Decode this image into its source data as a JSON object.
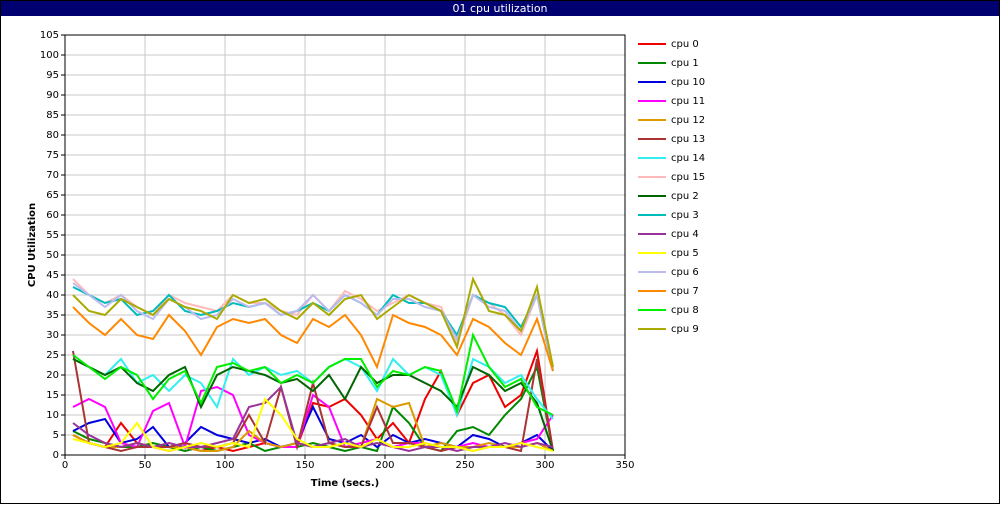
{
  "window_title": "01 cpu utilization",
  "chart_data": {
    "type": "line",
    "ylabel": "CPU Utilization",
    "xlabel": "Time (secs.)",
    "grid": true,
    "xlim": [
      0,
      350
    ],
    "xticks": [
      0,
      50,
      100,
      150,
      200,
      250,
      300,
      350
    ],
    "ylim": [
      0,
      105
    ],
    "yticks": [
      0,
      5,
      10,
      15,
      20,
      25,
      30,
      35,
      40,
      45,
      50,
      55,
      60,
      65,
      70,
      75,
      80,
      85,
      90,
      95,
      100,
      105
    ],
    "x": [
      5,
      15,
      25,
      35,
      45,
      55,
      65,
      75,
      85,
      95,
      105,
      115,
      125,
      135,
      145,
      155,
      165,
      175,
      185,
      195,
      205,
      215,
      225,
      235,
      245,
      255,
      265,
      275,
      285,
      295,
      305
    ],
    "series": [
      {
        "name": "cpu 0",
        "color": "#ee0000",
        "values": [
          5,
          3,
          2,
          8,
          3,
          2,
          1,
          2,
          1,
          2,
          1,
          2,
          3,
          2,
          2,
          13,
          12,
          14,
          10,
          4,
          8,
          3,
          14,
          21,
          10,
          18,
          20,
          12,
          15,
          26,
          1
        ]
      },
      {
        "name": "cpu 1",
        "color": "#008800",
        "values": [
          6,
          4,
          3,
          2,
          2,
          3,
          2,
          1,
          2,
          1,
          2,
          3,
          1,
          2,
          2,
          3,
          2,
          1,
          2,
          1,
          12,
          8,
          2,
          1,
          6,
          7,
          5,
          10,
          14,
          22,
          1
        ]
      },
      {
        "name": "cpu 10",
        "color": "#0000dd",
        "values": [
          6,
          8,
          9,
          3,
          4,
          7,
          2,
          3,
          7,
          5,
          4,
          3,
          4,
          2,
          3,
          12,
          4,
          3,
          5,
          2,
          5,
          3,
          4,
          3,
          2,
          5,
          4,
          2,
          3,
          5,
          1
        ]
      },
      {
        "name": "cpu 11",
        "color": "#ff00ff",
        "values": [
          12,
          14,
          12,
          3,
          2,
          11,
          13,
          2,
          16,
          17,
          15,
          5,
          3,
          2,
          2,
          15,
          12,
          2,
          3,
          4,
          2,
          3,
          3,
          2,
          2,
          3,
          2,
          2,
          3,
          4,
          10
        ]
      },
      {
        "name": "cpu 12",
        "color": "#dd9900",
        "values": [
          5,
          3,
          2,
          2,
          3,
          2,
          2,
          2,
          1,
          1,
          2,
          6,
          3,
          2,
          3,
          2,
          3,
          2,
          2,
          14,
          12,
          13,
          2,
          3,
          2,
          2,
          3,
          2,
          2,
          3,
          1
        ]
      },
      {
        "name": "cpu 13",
        "color": "#aa3333",
        "values": [
          26,
          3,
          2,
          1,
          2,
          2,
          2,
          3,
          2,
          2,
          3,
          10,
          3,
          17,
          2,
          18,
          3,
          2,
          2,
          12,
          3,
          3,
          2,
          1,
          2,
          1,
          2,
          2,
          1,
          24,
          1
        ]
      },
      {
        "name": "cpu 14",
        "color": "#33eeee",
        "values": [
          24,
          22,
          20,
          24,
          18,
          20,
          16,
          20,
          18,
          12,
          24,
          20,
          22,
          20,
          21,
          18,
          22,
          24,
          22,
          16,
          24,
          20,
          22,
          20,
          10,
          24,
          22,
          18,
          20,
          14,
          9
        ]
      },
      {
        "name": "cpu 15",
        "color": "#ffbbbb",
        "values": [
          44,
          40,
          38,
          40,
          37,
          35,
          40,
          38,
          37,
          36,
          40,
          38,
          38,
          36,
          35,
          40,
          36,
          41,
          39,
          36,
          38,
          40,
          38,
          37,
          28,
          40,
          38,
          35,
          30,
          40,
          22
        ]
      },
      {
        "name": "cpu 2",
        "color": "#006600",
        "values": [
          24,
          22,
          20,
          22,
          18,
          16,
          20,
          22,
          12,
          20,
          22,
          21,
          20,
          18,
          19,
          16,
          20,
          14,
          22,
          18,
          20,
          20,
          18,
          16,
          12,
          22,
          20,
          16,
          18,
          13,
          1
        ]
      },
      {
        "name": "cpu 3",
        "color": "#00bbbb",
        "values": [
          42,
          40,
          38,
          39,
          35,
          36,
          40,
          36,
          35,
          36,
          38,
          37,
          38,
          35,
          36,
          38,
          36,
          40,
          38,
          35,
          40,
          38,
          38,
          36,
          30,
          40,
          38,
          37,
          32,
          40,
          21
        ]
      },
      {
        "name": "cpu 4",
        "color": "#993399",
        "values": [
          8,
          5,
          3,
          2,
          3,
          2,
          3,
          2,
          2,
          3,
          4,
          12,
          13,
          17,
          3,
          2,
          3,
          4,
          2,
          3,
          2,
          1,
          2,
          2,
          1,
          2,
          2,
          3,
          2,
          3,
          2
        ]
      },
      {
        "name": "cpu 5",
        "color": "#ffff00",
        "values": [
          4,
          3,
          2,
          3,
          8,
          2,
          1,
          2,
          3,
          2,
          3,
          2,
          14,
          10,
          4,
          2,
          2,
          3,
          2,
          4,
          2,
          2,
          3,
          2,
          2,
          1,
          2,
          2,
          3,
          2,
          1
        ]
      },
      {
        "name": "cpu 6",
        "color": "#bbbbee",
        "values": [
          43,
          40,
          37,
          40,
          36,
          34,
          39,
          37,
          34,
          35,
          39,
          37,
          38,
          35,
          36,
          40,
          36,
          40,
          38,
          35,
          39,
          39,
          37,
          36,
          29,
          40,
          37,
          36,
          31,
          40,
          21
        ]
      },
      {
        "name": "cpu 7",
        "color": "#ff8800",
        "values": [
          37,
          33,
          30,
          34,
          30,
          29,
          35,
          31,
          25,
          32,
          34,
          33,
          34,
          30,
          28,
          34,
          32,
          35,
          30,
          22,
          35,
          33,
          32,
          30,
          25,
          34,
          32,
          28,
          25,
          34,
          21
        ]
      },
      {
        "name": "cpu 8",
        "color": "#00ee00",
        "values": [
          25,
          22,
          19,
          22,
          20,
          14,
          19,
          21,
          13,
          22,
          23,
          21,
          22,
          18,
          20,
          18,
          22,
          24,
          24,
          17,
          21,
          20,
          22,
          21,
          11,
          30,
          22,
          17,
          19,
          12,
          10
        ]
      },
      {
        "name": "cpu 9",
        "color": "#aaaa00",
        "values": [
          40,
          36,
          35,
          39,
          37,
          35,
          39,
          37,
          36,
          34,
          40,
          38,
          39,
          36,
          34,
          38,
          35,
          39,
          40,
          34,
          37,
          40,
          38,
          36,
          27,
          44,
          36,
          35,
          31,
          42,
          22
        ]
      }
    ]
  }
}
